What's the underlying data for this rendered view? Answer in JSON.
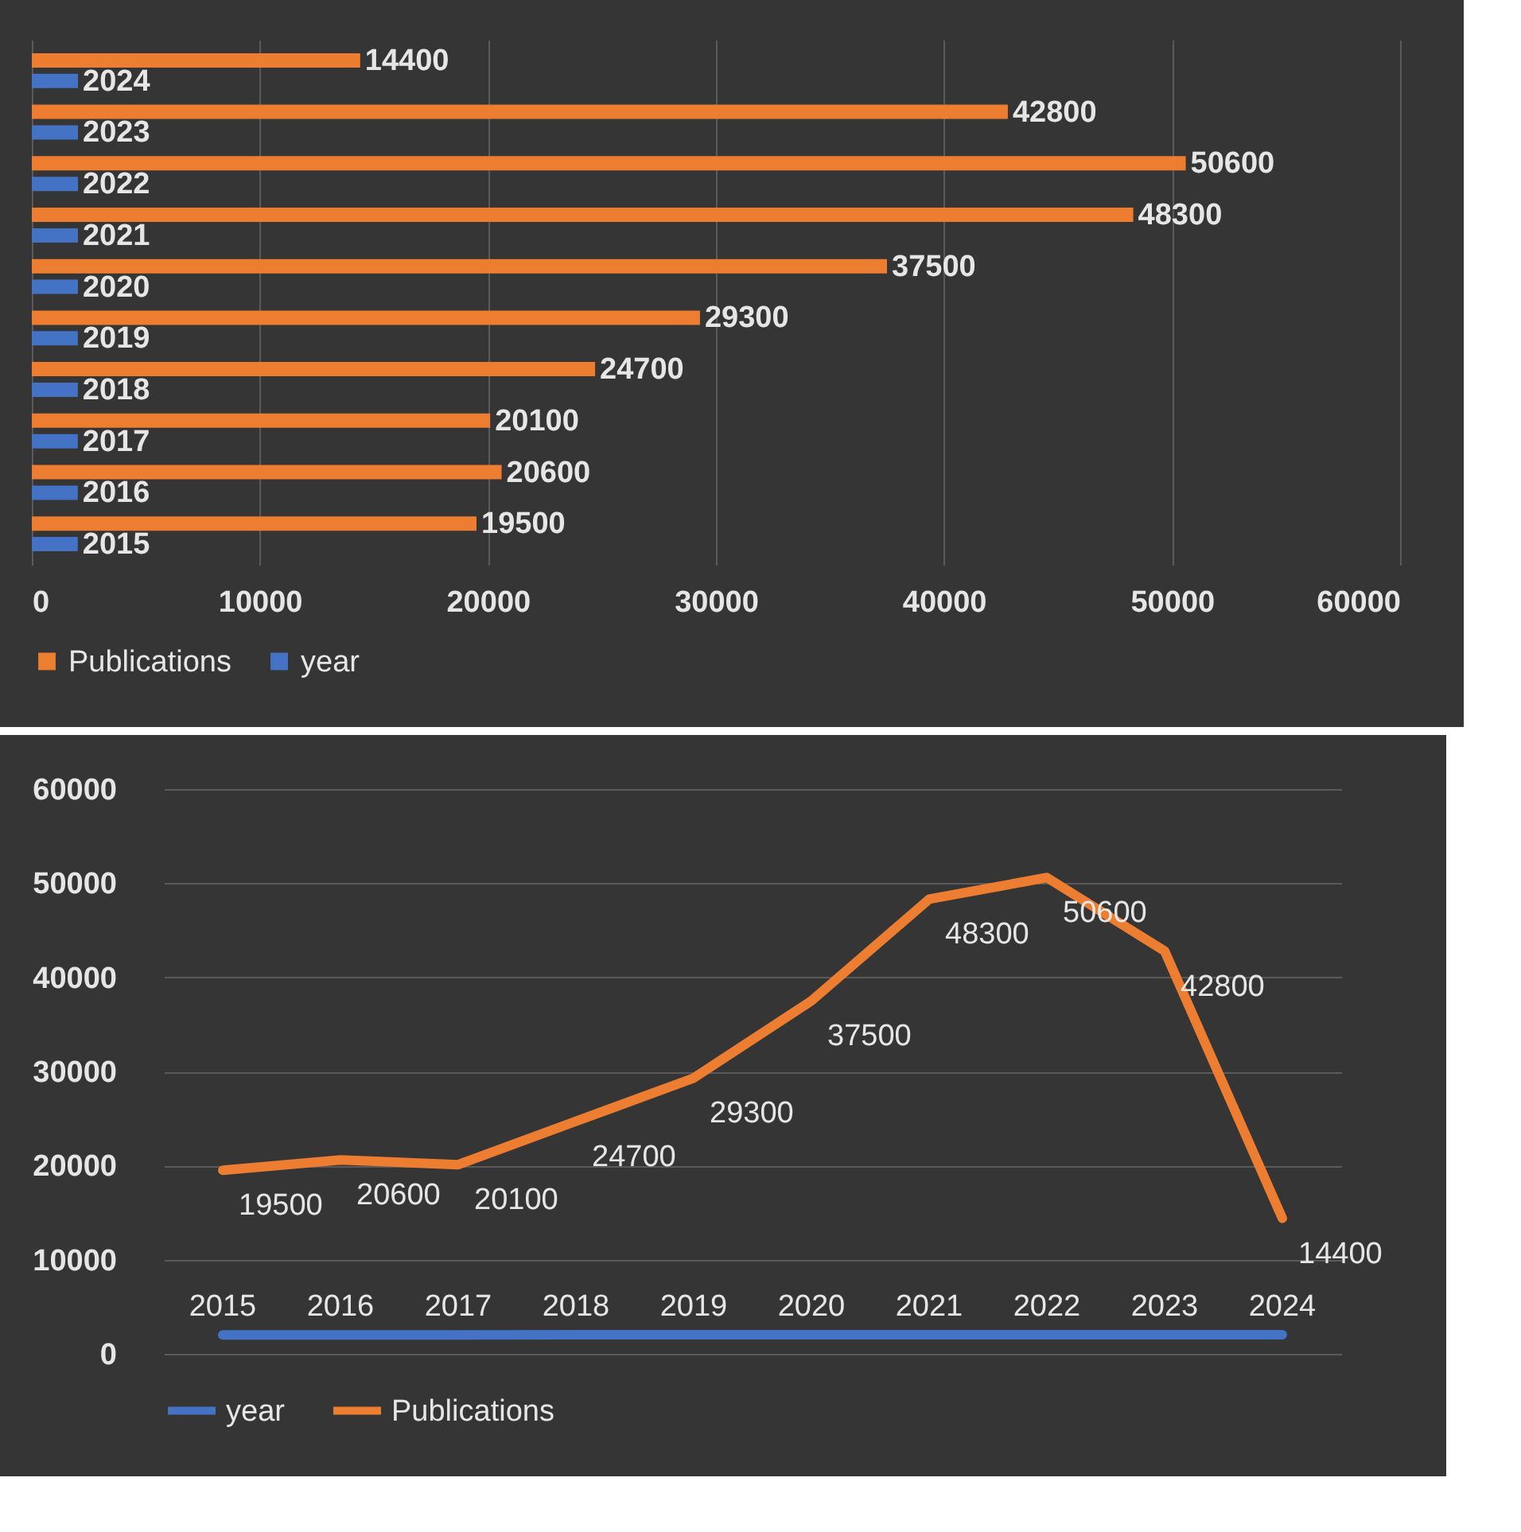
{
  "chart_data": [
    {
      "type": "bar",
      "orientation": "horizontal",
      "categories": [
        null,
        null,
        null,
        null,
        null,
        null,
        null,
        null,
        null,
        null
      ],
      "series": [
        {
          "name": "Publications",
          "color": "#ed7d31",
          "values": [
            14400,
            42800,
            50600,
            48300,
            37500,
            29300,
            24700,
            20100,
            20600,
            19500
          ]
        },
        {
          "name": "year",
          "color": "#4472c4",
          "values": [
            2024,
            2023,
            2022,
            2021,
            2020,
            2019,
            2018,
            2017,
            2016,
            2015
          ]
        }
      ],
      "xlim": [
        0,
        60000
      ],
      "xticks": [
        0,
        10000,
        20000,
        30000,
        40000,
        50000,
        60000
      ],
      "grid": "x",
      "legend": "bottom",
      "data_labels": true,
      "tick_labels": "x"
    },
    {
      "type": "line",
      "categories": [
        null,
        null,
        null,
        null,
        null,
        null,
        null,
        null,
        null,
        null
      ],
      "series": [
        {
          "name": "year",
          "color": "#4472c4",
          "values": [
            2015,
            2016,
            2017,
            2018,
            2019,
            2020,
            2021,
            2022,
            2023,
            2024
          ]
        },
        {
          "name": "Publications",
          "color": "#ed7d31",
          "values": [
            19500,
            20600,
            20100,
            24700,
            29300,
            37500,
            48300,
            50600,
            42800,
            14400
          ]
        }
      ],
      "ylim": [
        0,
        60000
      ],
      "yticks": [
        0,
        10000,
        20000,
        30000,
        40000,
        50000,
        60000
      ],
      "grid": "y",
      "legend": "bottom",
      "data_labels": true,
      "tick_labels": "y"
    }
  ]
}
